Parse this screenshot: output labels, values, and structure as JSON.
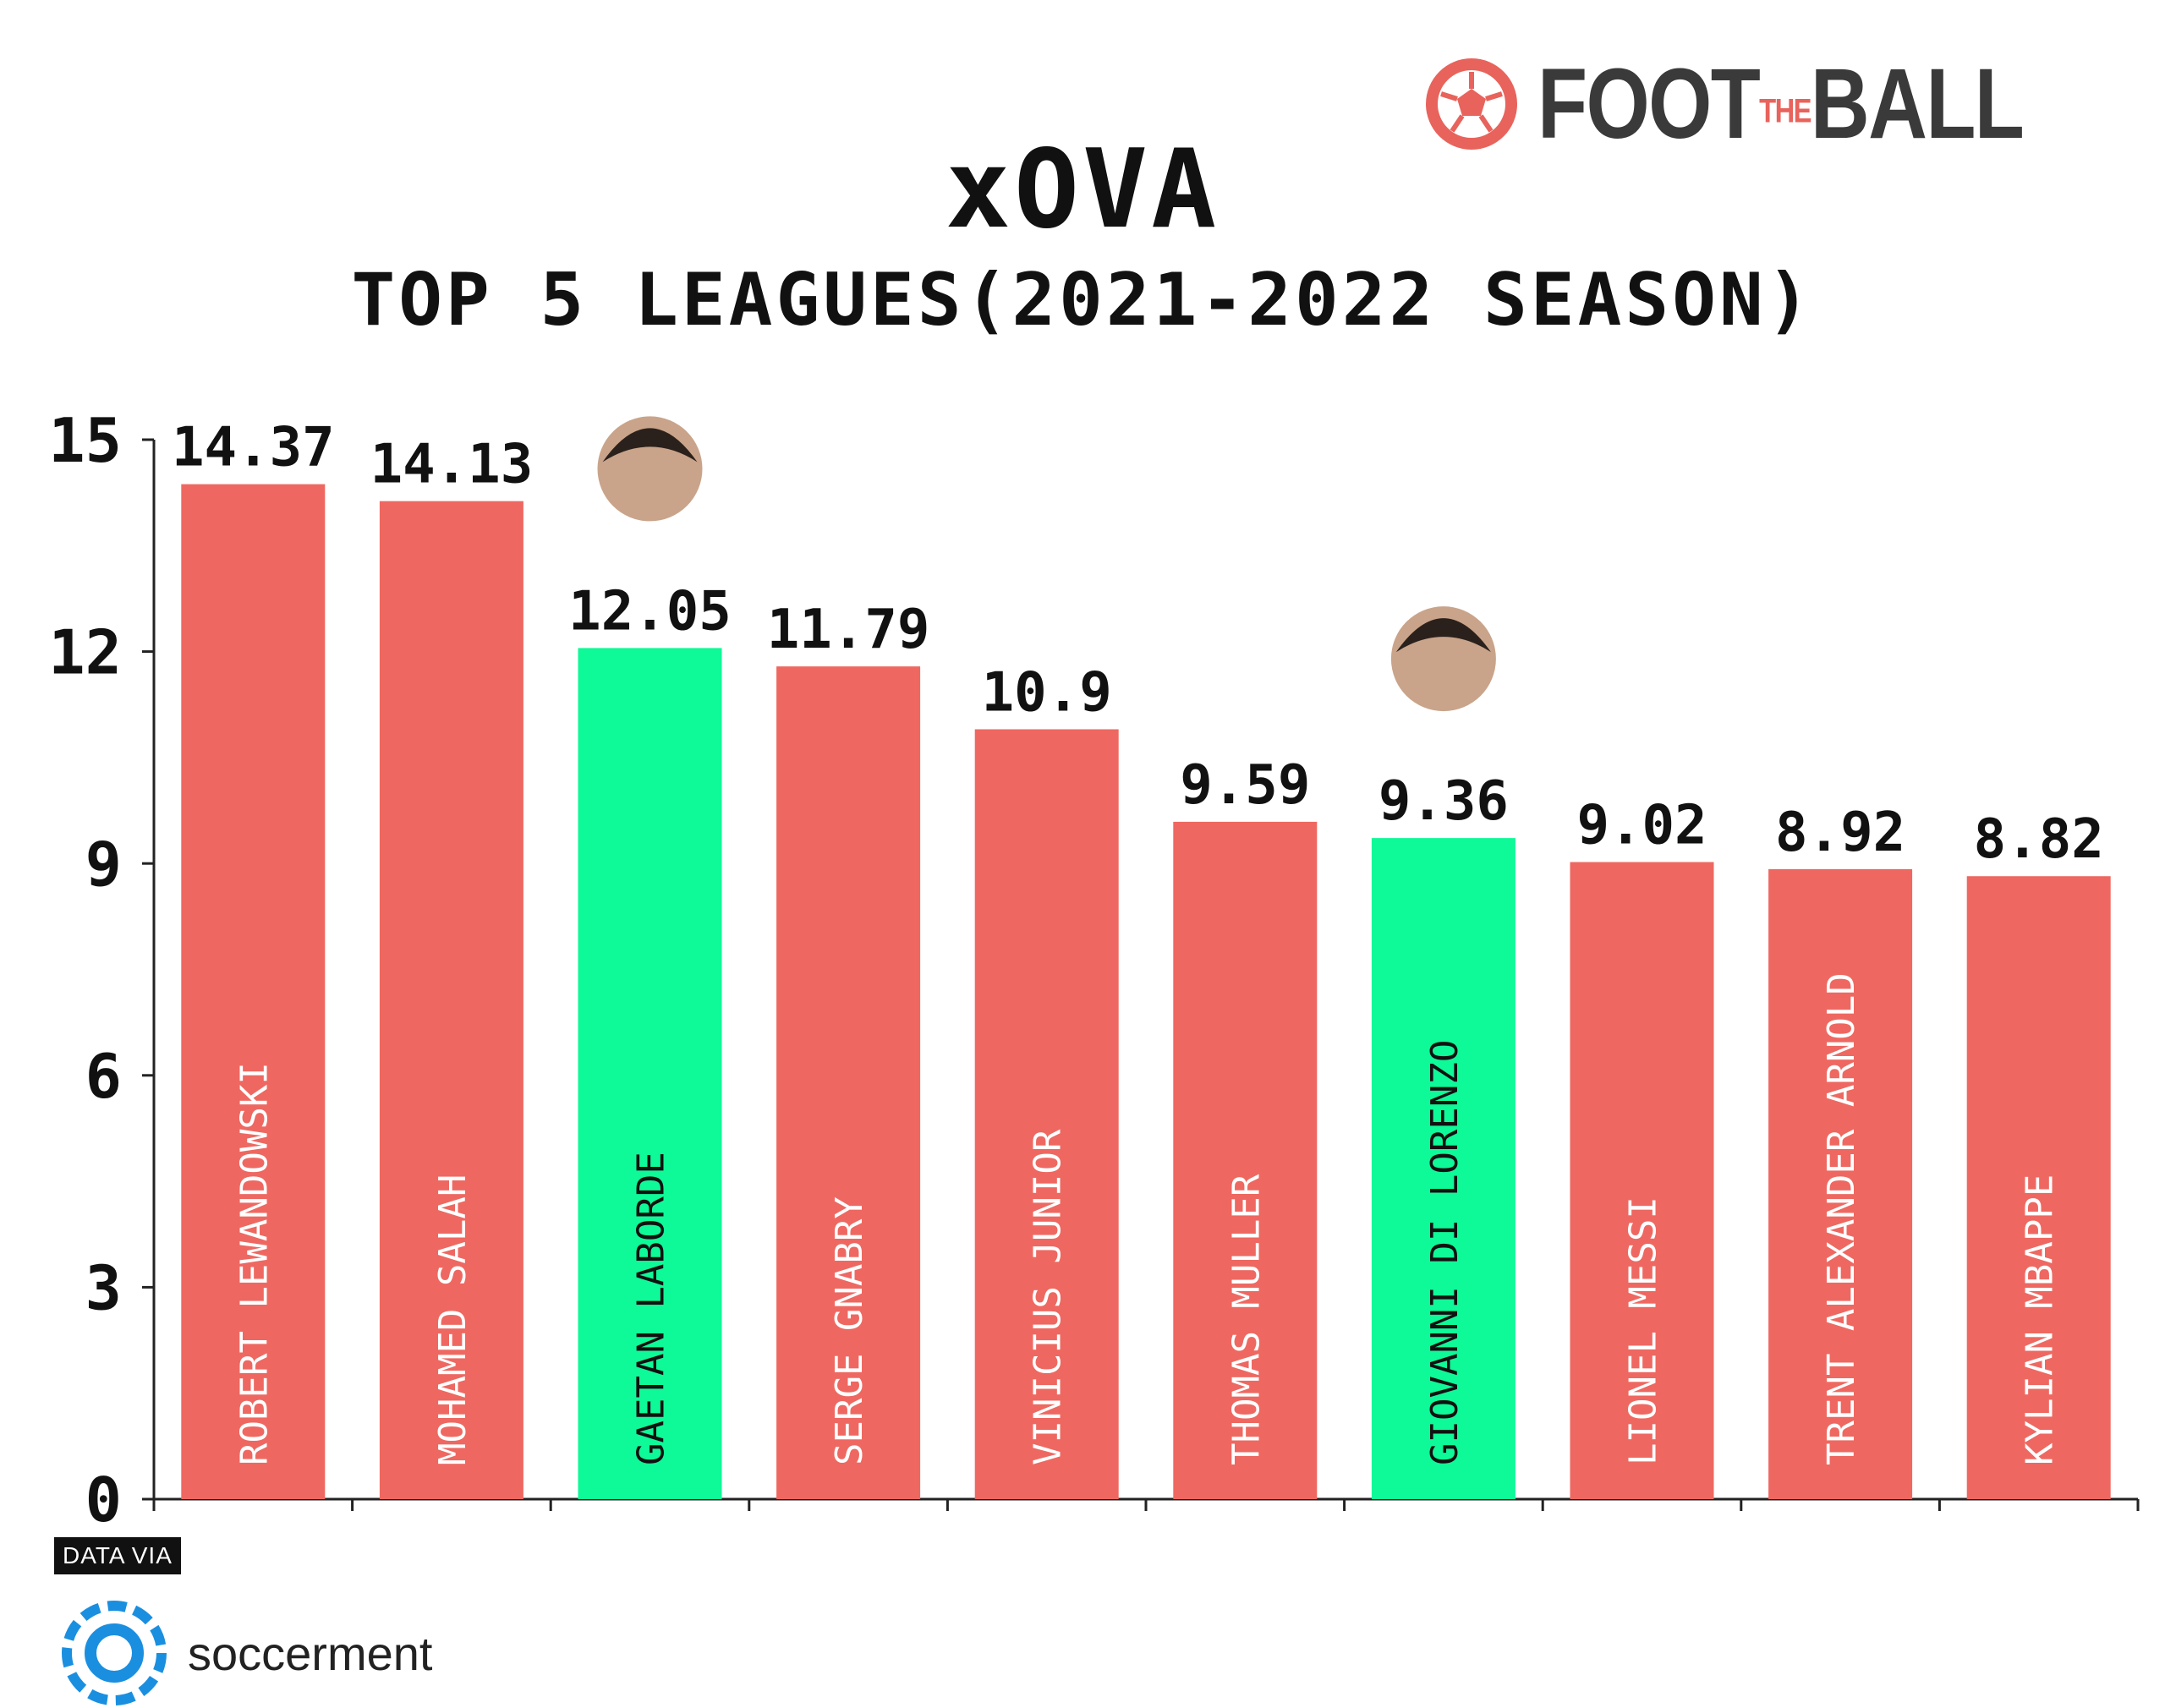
{
  "header": {
    "title": "xOVA",
    "subtitle": "TOP 5 LEAGUES(2021-2022 SEASON)",
    "brand": {
      "pre": "FOOT",
      "mid": "THE",
      "post": "BALL",
      "accent": "#e8635c"
    }
  },
  "footer": {
    "data_via": "DATA VIA",
    "source": "soccerment",
    "source_color": "#1a8fe0"
  },
  "colors": {
    "default_bar": "#ee6861",
    "highlight_bar": "#0ef997",
    "axis": "#222222"
  },
  "chart_data": {
    "type": "bar",
    "title": "xOVA",
    "subtitle": "TOP 5 LEAGUES(2021-2022 SEASON)",
    "categories": [
      "ROBERT LEWANDOWSKI",
      "MOHAMED SALAH",
      "GAETAN LABORDE",
      "SERGE GNABRY",
      "VINICIUS JUNIOR",
      "THOMAS MULLER",
      "GIOVANNI DI LORENZO",
      "LIONEL MESSI",
      "TRENT ALEXANDER ARNOLD",
      "KYLIAN MBAPPE"
    ],
    "values": [
      14.37,
      14.13,
      12.05,
      11.79,
      10.9,
      9.59,
      9.36,
      9.02,
      8.92,
      8.82
    ],
    "value_labels": [
      "14.37",
      "14.13",
      "12.05",
      "11.79",
      "10.9",
      "9.59",
      "9.36",
      "9.02",
      "8.92",
      "8.82"
    ],
    "highlighted": [
      "GAETAN LABORDE",
      "GIOVANNI DI LORENZO"
    ],
    "yticks": [
      0,
      3,
      6,
      9,
      12,
      15
    ],
    "ylim": [
      0,
      15
    ],
    "grid": false,
    "legend": "none"
  }
}
